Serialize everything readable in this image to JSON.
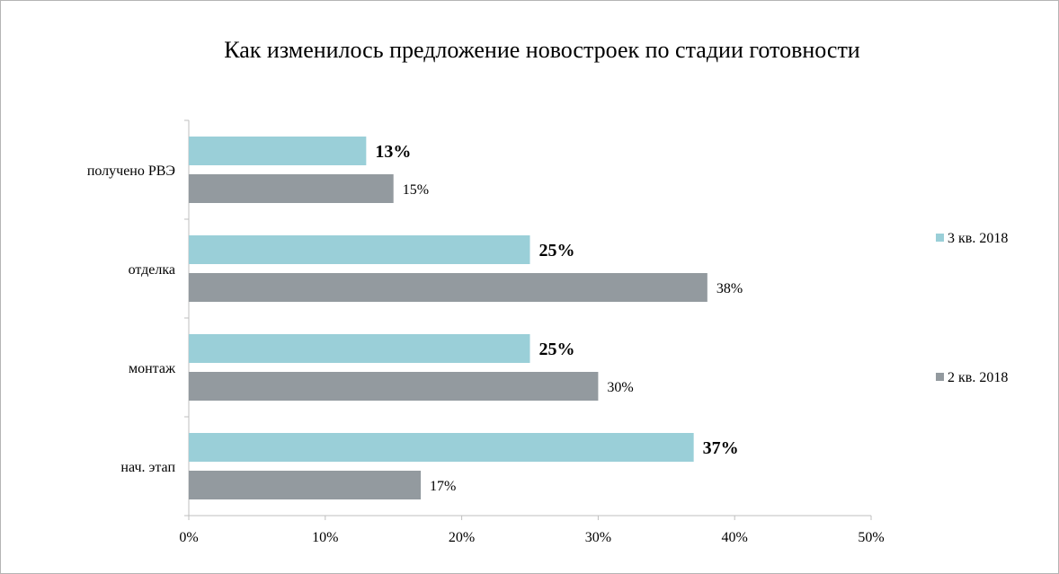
{
  "chart_data": {
    "type": "bar",
    "orientation": "horizontal",
    "title": "Как изменилось предложение новостроек по стадии готовности",
    "categories": [
      "получено РВЭ",
      "отделка",
      "монтаж",
      "нач. этап"
    ],
    "series": [
      {
        "name": "3 кв. 2018",
        "color": "#9acfd8",
        "values": [
          13,
          25,
          25,
          37
        ],
        "labels": [
          "13%",
          "25%",
          "25%",
          "37%"
        ],
        "label_bold": true
      },
      {
        "name": "2 кв. 2018",
        "color": "#939a9f",
        "values": [
          15,
          38,
          30,
          17
        ],
        "labels": [
          "15%",
          "38%",
          "30%",
          "17%"
        ],
        "label_bold": false
      }
    ],
    "xlim": [
      0,
      50
    ],
    "xticks": [
      0,
      10,
      20,
      30,
      40,
      50
    ],
    "xtick_labels": [
      "0%",
      "10%",
      "20%",
      "30%",
      "40%",
      "50%"
    ],
    "xlabel": "",
    "ylabel": "",
    "grid": false,
    "legend_position": "right"
  }
}
